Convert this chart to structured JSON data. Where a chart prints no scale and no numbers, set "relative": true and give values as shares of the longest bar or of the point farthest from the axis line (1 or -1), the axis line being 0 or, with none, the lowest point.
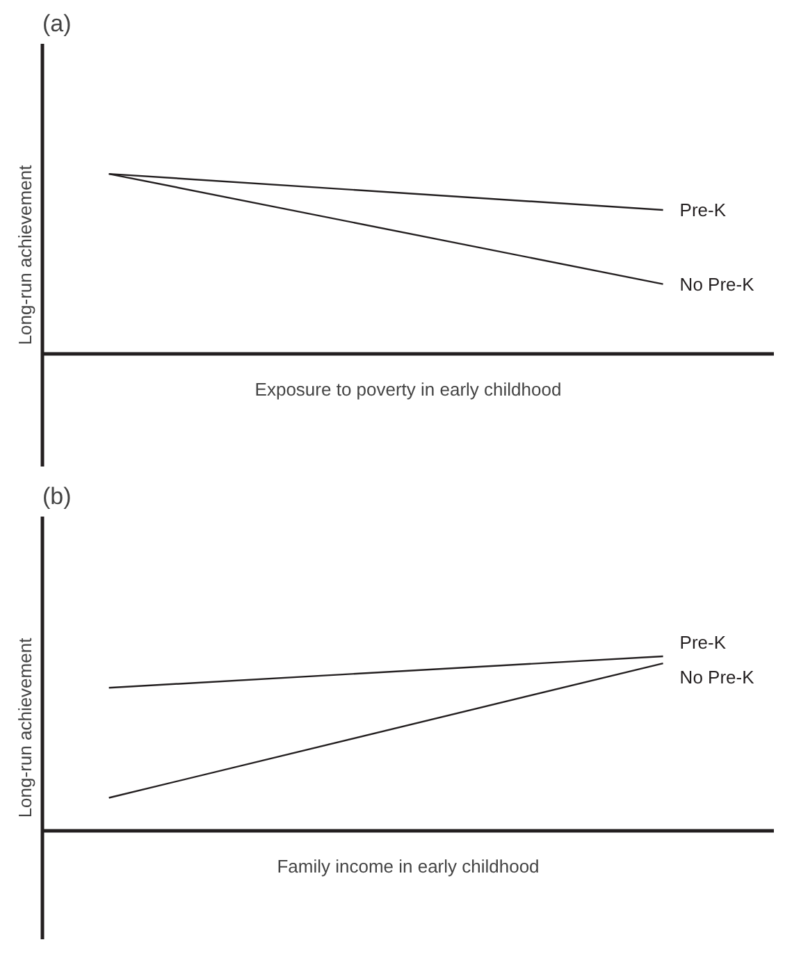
{
  "chart_data": [
    {
      "type": "line",
      "title": "(a)",
      "xlabel": "Exposure to poverty in early childhood",
      "ylabel": "Long-run achievement",
      "relative": true,
      "categories": [
        null,
        null
      ],
      "series": [
        {
          "name": "Pre-K",
          "color": "#231f20",
          "values": [
            1,
            0.8
          ]
        },
        {
          "name": "No Pre-K",
          "color": "#231f20",
          "values": [
            1,
            0.39
          ]
        }
      ]
    },
    {
      "type": "line",
      "title": "(b)",
      "xlabel": "Family income in early childhood",
      "ylabel": "Long-run achievement",
      "relative": true,
      "categories": [
        null,
        null
      ],
      "series": [
        {
          "name": "Pre-K",
          "color": "#231f20",
          "values": [
            0.82,
            1
          ]
        },
        {
          "name": "No Pre-K",
          "color": "#231f20",
          "values": [
            0.19,
            0.96
          ]
        }
      ]
    }
  ]
}
